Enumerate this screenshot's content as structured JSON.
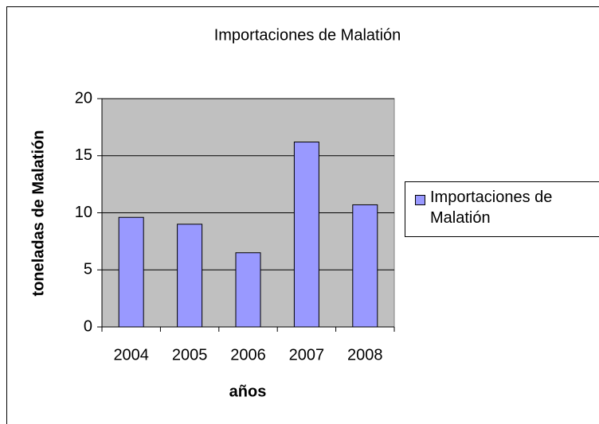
{
  "chart_data": {
    "type": "bar",
    "title": "Importaciones de Malatión",
    "x_label": "años",
    "y_label": "toneladas de Malatión",
    "categories": [
      "2004",
      "2005",
      "2006",
      "2007",
      "2008"
    ],
    "series": [
      {
        "name": "Importaciones de Malatión",
        "color": "#9999ff",
        "values": [
          9.6,
          9.0,
          6.5,
          16.2,
          10.7
        ]
      }
    ],
    "ylim": [
      0,
      20
    ],
    "yticks": [
      0,
      5,
      10,
      15,
      20
    ],
    "grid": true,
    "legend": "right"
  }
}
